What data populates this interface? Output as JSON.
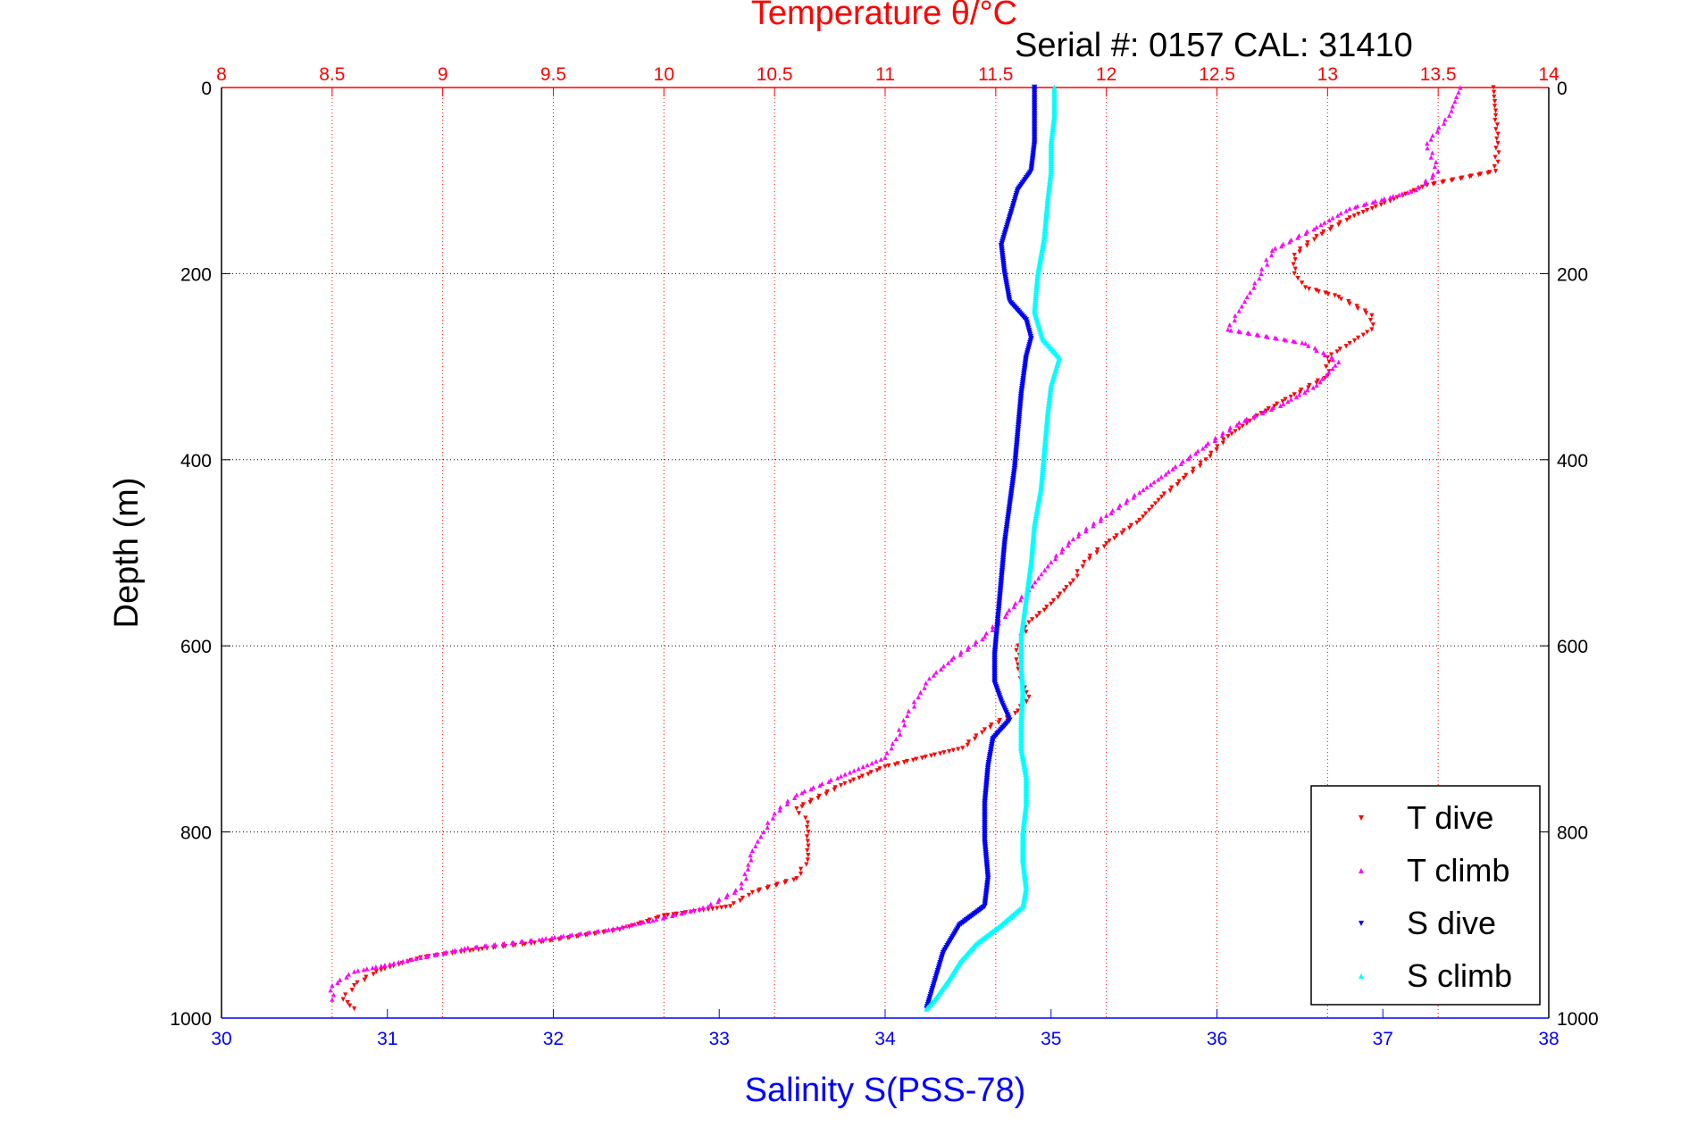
{
  "chart_data": {
    "type": "scatter",
    "title": "Temperature θ/°C",
    "subtitle": "Serial #: 0157  CAL: 31410",
    "ylabel": "Depth (m)",
    "xlabel": "Salinity S(PSS-78)",
    "ylim": [
      1000,
      0
    ],
    "y_ticks": [
      "0",
      "200",
      "400",
      "600",
      "800",
      "1000"
    ],
    "x_bottom": {
      "range": [
        30,
        38
      ],
      "ticks": [
        "30",
        "31",
        "32",
        "33",
        "34",
        "35",
        "36",
        "37",
        "38"
      ],
      "color": "#0000ff"
    },
    "x_top": {
      "range": [
        8,
        14
      ],
      "ticks": [
        "8",
        "8.5",
        "9",
        "9.5",
        "10",
        "10.5",
        "11",
        "11.5",
        "12",
        "12.5",
        "13",
        "13.5",
        "14"
      ],
      "color": "#ff0000"
    },
    "grid": true,
    "legend_position": "bottom-right",
    "series": [
      {
        "name": "T dive",
        "axis": "top",
        "color": "#ff0000",
        "marker": "▾",
        "points": [
          [
            13.75,
            0
          ],
          [
            13.76,
            30
          ],
          [
            13.77,
            60
          ],
          [
            13.76,
            90
          ],
          [
            13.45,
            105
          ],
          [
            13.3,
            120
          ],
          [
            13.1,
            140
          ],
          [
            12.95,
            160
          ],
          [
            12.85,
            180
          ],
          [
            12.85,
            200
          ],
          [
            12.9,
            215
          ],
          [
            13.05,
            225
          ],
          [
            13.2,
            245
          ],
          [
            13.2,
            260
          ],
          [
            13.1,
            275
          ],
          [
            13.0,
            290
          ],
          [
            13.0,
            310
          ],
          [
            12.85,
            330
          ],
          [
            12.7,
            350
          ],
          [
            12.55,
            375
          ],
          [
            12.45,
            400
          ],
          [
            12.35,
            420
          ],
          [
            12.25,
            440
          ],
          [
            12.15,
            465
          ],
          [
            12.0,
            490
          ],
          [
            11.9,
            510
          ],
          [
            11.85,
            530
          ],
          [
            11.75,
            555
          ],
          [
            11.65,
            575
          ],
          [
            11.6,
            600
          ],
          [
            11.6,
            620
          ],
          [
            11.62,
            640
          ],
          [
            11.65,
            655
          ],
          [
            11.6,
            670
          ],
          [
            11.45,
            690
          ],
          [
            11.35,
            710
          ],
          [
            11.0,
            730
          ],
          [
            10.8,
            750
          ],
          [
            10.6,
            775
          ],
          [
            10.65,
            790
          ],
          [
            10.65,
            810
          ],
          [
            10.65,
            830
          ],
          [
            10.6,
            850
          ],
          [
            10.4,
            865
          ],
          [
            10.3,
            880
          ],
          [
            10.0,
            890
          ],
          [
            9.8,
            905
          ],
          [
            9.4,
            920
          ],
          [
            9.2,
            925
          ],
          [
            8.9,
            935
          ],
          [
            8.7,
            950
          ],
          [
            8.6,
            965
          ],
          [
            8.55,
            980
          ],
          [
            8.6,
            990
          ]
        ]
      },
      {
        "name": "T climb",
        "axis": "top",
        "color": "#ff00ff",
        "marker": "▴",
        "points": [
          [
            13.6,
            0
          ],
          [
            13.55,
            30
          ],
          [
            13.45,
            60
          ],
          [
            13.5,
            90
          ],
          [
            13.4,
            110
          ],
          [
            13.1,
            130
          ],
          [
            12.95,
            150
          ],
          [
            12.75,
            175
          ],
          [
            12.7,
            200
          ],
          [
            12.65,
            220
          ],
          [
            12.6,
            240
          ],
          [
            12.55,
            260
          ],
          [
            12.9,
            275
          ],
          [
            13.05,
            295
          ],
          [
            12.95,
            320
          ],
          [
            12.8,
            340
          ],
          [
            12.6,
            360
          ],
          [
            12.45,
            385
          ],
          [
            12.3,
            410
          ],
          [
            12.15,
            435
          ],
          [
            12.0,
            460
          ],
          [
            11.85,
            485
          ],
          [
            11.75,
            510
          ],
          [
            11.65,
            540
          ],
          [
            11.55,
            565
          ],
          [
            11.45,
            590
          ],
          [
            11.3,
            615
          ],
          [
            11.2,
            635
          ],
          [
            11.15,
            655
          ],
          [
            11.1,
            675
          ],
          [
            11.05,
            700
          ],
          [
            11.0,
            720
          ],
          [
            10.8,
            740
          ],
          [
            10.6,
            760
          ],
          [
            10.5,
            780
          ],
          [
            10.45,
            800
          ],
          [
            10.4,
            820
          ],
          [
            10.38,
            840
          ],
          [
            10.35,
            860
          ],
          [
            10.2,
            880
          ],
          [
            9.95,
            895
          ],
          [
            9.75,
            905
          ],
          [
            9.45,
            915
          ],
          [
            9.1,
            925
          ],
          [
            8.9,
            935
          ],
          [
            8.6,
            950
          ],
          [
            8.5,
            965
          ],
          [
            8.5,
            980
          ]
        ]
      },
      {
        "name": "S dive",
        "axis": "bottom",
        "color": "#0000ff",
        "marker": "▾",
        "points": [
          [
            34.9,
            0
          ],
          [
            34.9,
            30
          ],
          [
            34.9,
            60
          ],
          [
            34.88,
            90
          ],
          [
            34.8,
            110
          ],
          [
            34.75,
            140
          ],
          [
            34.7,
            170
          ],
          [
            34.72,
            200
          ],
          [
            34.75,
            230
          ],
          [
            34.85,
            250
          ],
          [
            34.88,
            270
          ],
          [
            34.85,
            290
          ],
          [
            34.82,
            330
          ],
          [
            34.8,
            370
          ],
          [
            34.78,
            410
          ],
          [
            34.75,
            450
          ],
          [
            34.72,
            490
          ],
          [
            34.7,
            530
          ],
          [
            34.68,
            570
          ],
          [
            34.66,
            610
          ],
          [
            34.66,
            640
          ],
          [
            34.7,
            660
          ],
          [
            34.75,
            680
          ],
          [
            34.65,
            700
          ],
          [
            34.62,
            730
          ],
          [
            34.6,
            770
          ],
          [
            34.6,
            810
          ],
          [
            34.62,
            850
          ],
          [
            34.6,
            880
          ],
          [
            34.45,
            900
          ],
          [
            34.35,
            930
          ],
          [
            34.3,
            960
          ],
          [
            34.25,
            990
          ]
        ]
      },
      {
        "name": "S climb",
        "axis": "bottom",
        "color": "#00ffff",
        "marker": "▴",
        "points": [
          [
            35.02,
            0
          ],
          [
            35.02,
            30
          ],
          [
            35.0,
            60
          ],
          [
            35.0,
            90
          ],
          [
            34.98,
            120
          ],
          [
            34.96,
            160
          ],
          [
            34.92,
            200
          ],
          [
            34.9,
            240
          ],
          [
            34.95,
            270
          ],
          [
            35.05,
            290
          ],
          [
            35.0,
            320
          ],
          [
            34.98,
            350
          ],
          [
            34.96,
            390
          ],
          [
            34.94,
            430
          ],
          [
            34.9,
            470
          ],
          [
            34.88,
            510
          ],
          [
            34.85,
            550
          ],
          [
            34.82,
            590
          ],
          [
            34.82,
            620
          ],
          [
            34.83,
            650
          ],
          [
            34.82,
            680
          ],
          [
            34.82,
            710
          ],
          [
            34.85,
            740
          ],
          [
            34.85,
            770
          ],
          [
            34.83,
            800
          ],
          [
            34.83,
            830
          ],
          [
            34.85,
            860
          ],
          [
            34.83,
            880
          ],
          [
            34.7,
            900
          ],
          [
            34.55,
            920
          ],
          [
            34.45,
            940
          ],
          [
            34.38,
            960
          ],
          [
            34.3,
            980
          ],
          [
            34.25,
            990
          ]
        ]
      }
    ]
  }
}
